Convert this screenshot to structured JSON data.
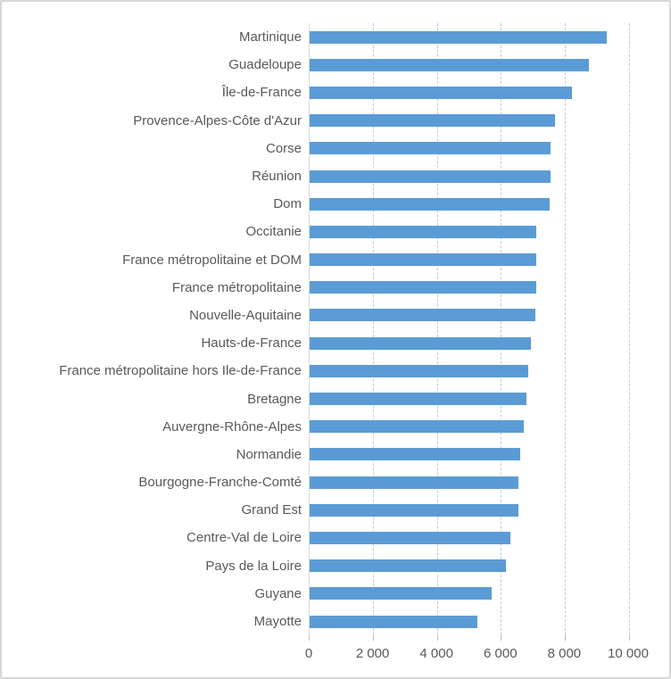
{
  "chart_data": {
    "type": "bar",
    "orientation": "horizontal",
    "title": "",
    "categories": [
      "Martinique",
      "Guadeloupe",
      "Île-de-France",
      "Provence-Alpes-Côte d'Azur",
      "Corse",
      "Réunion",
      "Dom",
      "Occitanie",
      "France métropolitaine et DOM",
      "France métropolitaine",
      "Nouvelle-Aquitaine",
      "Hauts-de-France",
      "France métropolitaine hors Ile-de-France",
      "Bretagne",
      "Auvergne-Rhône-Alpes",
      "Normandie",
      "Bourgogne-Franche-Comté",
      "Grand Est",
      "Centre-Val de Loire",
      "Pays de la Loire",
      "Guyane",
      "Mayotte"
    ],
    "values": [
      9290,
      8750,
      8200,
      7680,
      7540,
      7540,
      7500,
      7100,
      7100,
      7090,
      7060,
      6940,
      6840,
      6780,
      6710,
      6590,
      6540,
      6530,
      6280,
      6150,
      5710,
      5260
    ],
    "xlabel": "",
    "ylabel": "",
    "xlim": [
      0,
      10000
    ],
    "x_ticks": [
      0,
      2000,
      4000,
      6000,
      8000,
      10000
    ],
    "x_tick_labels": [
      "0",
      "2 000",
      "4 000",
      "6 000",
      "8 000",
      "10 000"
    ],
    "grid": "vertical-dashed",
    "legend": "none",
    "colors": {
      "bar": "#5b9bd5",
      "gridline": "#c9c9c9",
      "axis_line": "#d9d9d9",
      "text": "#595959",
      "background": "#ffffff",
      "border": "#d8d8d8"
    }
  }
}
